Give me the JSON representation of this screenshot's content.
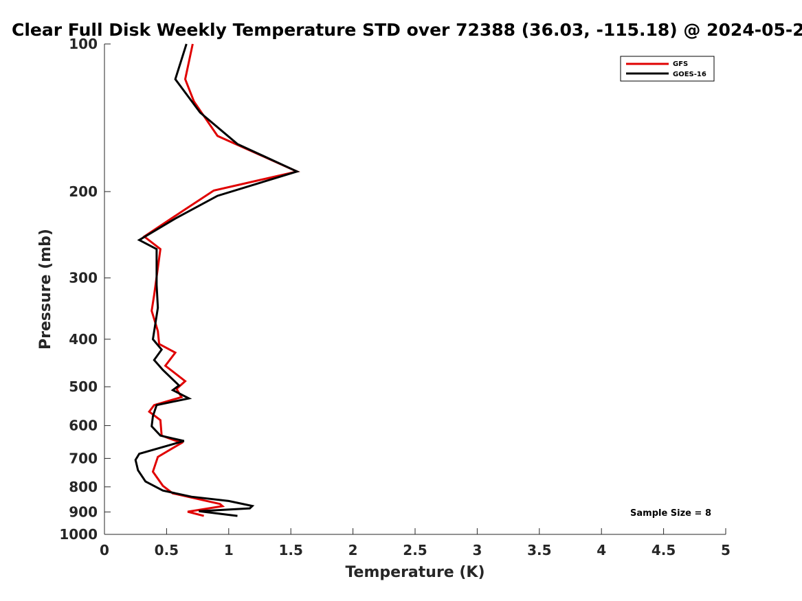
{
  "chart_data": {
    "type": "line",
    "title": "Clear Full Disk Weekly Temperature STD over 72388 (36.03, -115.18) @ 2024-05-2",
    "xlabel": "Temperature (K)",
    "ylabel": "Pressure (mb)",
    "xlim": [
      0,
      5
    ],
    "ylim": [
      1000,
      100
    ],
    "y_scale": "log",
    "y_reversed": true,
    "x_ticks": [
      0,
      0.5,
      1,
      1.5,
      2,
      2.5,
      3,
      3.5,
      4,
      4.5,
      5
    ],
    "x_tick_labels": [
      "0",
      "0.5",
      "1",
      "1.5",
      "2",
      "2.5",
      "3",
      "3.5",
      "4",
      "4.5",
      "5"
    ],
    "y_ticks": [
      100,
      200,
      300,
      400,
      500,
      600,
      700,
      800,
      900,
      1000
    ],
    "y_tick_labels": [
      "100",
      "200",
      "300",
      "400",
      "500",
      "600",
      "700",
      "800",
      "900",
      "1000"
    ],
    "grid": false,
    "legend_position": "top-right",
    "annotation": "Sample Size = 8",
    "series": [
      {
        "name": "GFS",
        "color": "#e00000",
        "points": [
          [
            0.71,
            100
          ],
          [
            0.65,
            118
          ],
          [
            0.72,
            131
          ],
          [
            0.91,
            154
          ],
          [
            1.55,
            182
          ],
          [
            0.88,
            199
          ],
          [
            0.63,
            219
          ],
          [
            0.32,
            247
          ],
          [
            0.45,
            262
          ],
          [
            0.4,
            325
          ],
          [
            0.38,
            350
          ],
          [
            0.43,
            385
          ],
          [
            0.44,
            409
          ],
          [
            0.57,
            426
          ],
          [
            0.49,
            453
          ],
          [
            0.65,
            487
          ],
          [
            0.58,
            505
          ],
          [
            0.62,
            525
          ],
          [
            0.4,
            545
          ],
          [
            0.36,
            562
          ],
          [
            0.45,
            585
          ],
          [
            0.46,
            629
          ],
          [
            0.62,
            651
          ],
          [
            0.43,
            695
          ],
          [
            0.39,
            745
          ],
          [
            0.47,
            796
          ],
          [
            0.55,
            825
          ],
          [
            0.93,
            867
          ],
          [
            0.95,
            876
          ],
          [
            0.67,
            899
          ],
          [
            0.8,
            917
          ]
        ]
      },
      {
        "name": "GOES-16",
        "color": "#000000",
        "points": [
          [
            0.66,
            100
          ],
          [
            0.57,
            118
          ],
          [
            0.77,
            138
          ],
          [
            1.07,
            160
          ],
          [
            1.55,
            182
          ],
          [
            0.91,
            204
          ],
          [
            0.57,
            227
          ],
          [
            0.28,
            251
          ],
          [
            0.42,
            262
          ],
          [
            0.42,
            310
          ],
          [
            0.43,
            345
          ],
          [
            0.39,
            400
          ],
          [
            0.46,
            420
          ],
          [
            0.4,
            441
          ],
          [
            0.47,
            462
          ],
          [
            0.6,
            497
          ],
          [
            0.55,
            508
          ],
          [
            0.68,
            528
          ],
          [
            0.42,
            545
          ],
          [
            0.39,
            574
          ],
          [
            0.38,
            602
          ],
          [
            0.45,
            629
          ],
          [
            0.64,
            645
          ],
          [
            0.28,
            685
          ],
          [
            0.25,
            705
          ],
          [
            0.27,
            740
          ],
          [
            0.33,
            780
          ],
          [
            0.47,
            814
          ],
          [
            0.7,
            838
          ],
          [
            1.0,
            855
          ],
          [
            1.19,
            875
          ],
          [
            1.17,
            885
          ],
          [
            0.76,
            897
          ],
          [
            1.07,
            917
          ]
        ]
      }
    ]
  }
}
